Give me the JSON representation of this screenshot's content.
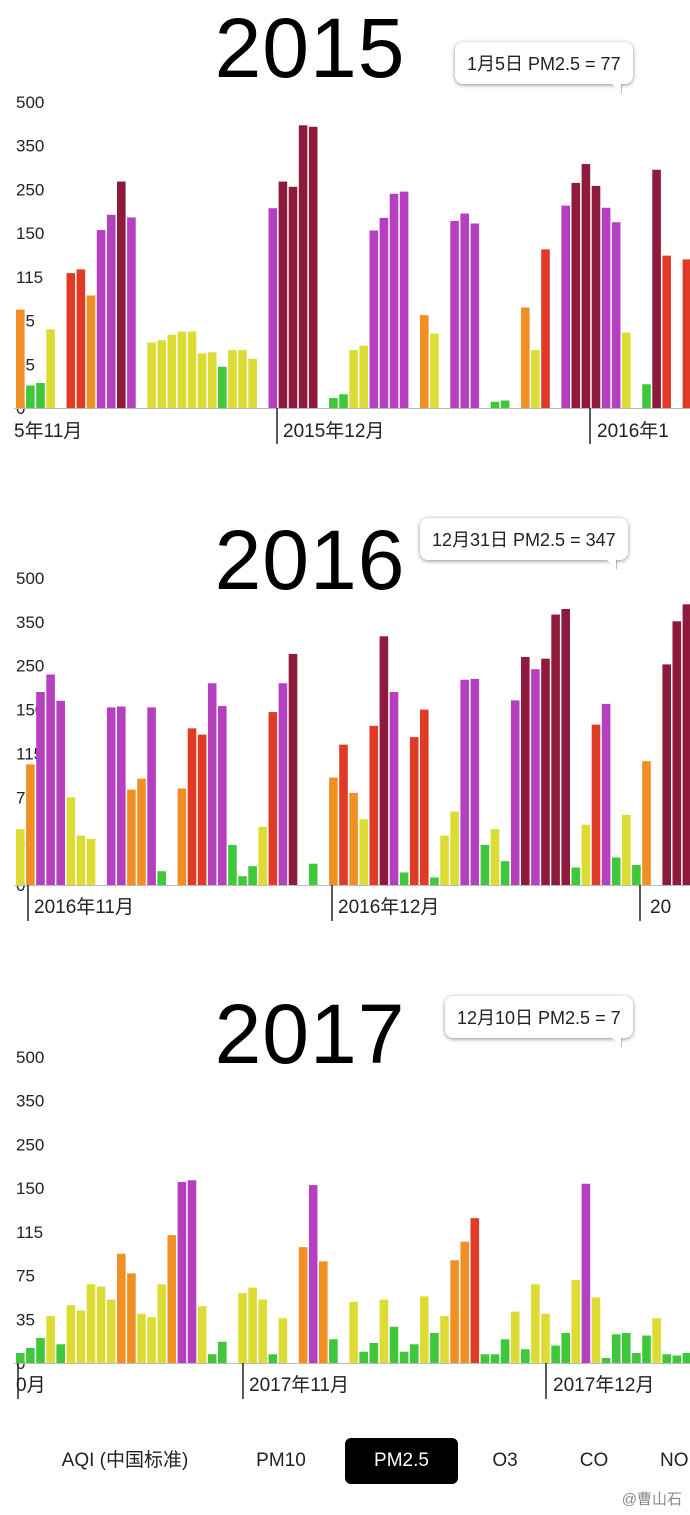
{
  "tabs": [
    {
      "label": "AQI (中国标准)"
    },
    {
      "label": "PM10"
    },
    {
      "label": "PM2.5",
      "active": true
    },
    {
      "label": "O3"
    },
    {
      "label": "CO"
    },
    {
      "label": "NO"
    }
  ],
  "watermark": "@曹山石",
  "colors": {
    "good": "#3ec83a",
    "moderate": "#dcdc35",
    "usg": "#ef8f24",
    "unhealthy": "#e03c25",
    "very_unhealthy": "#b440c0",
    "hazardous": "#8e1a3c"
  },
  "chart_data": [
    {
      "type": "bar",
      "title": "2015",
      "tooltip": "1月5日 PM2.5 = 77",
      "yticks": [
        "500",
        "350",
        "250",
        "150",
        "115",
        "75",
        "35",
        "0"
      ],
      "month_labels": [
        "5年11月",
        "2015年12月",
        "2016年1"
      ],
      "values": [
        85,
        18,
        20,
        67,
        0,
        118,
        121,
        98,
        157,
        192,
        268,
        186,
        0,
        55,
        57,
        62,
        65,
        65,
        45,
        46,
        33,
        48,
        48,
        40,
        0,
        207,
        268,
        256,
        420,
        415,
        0,
        8,
        11,
        48,
        52,
        156,
        185,
        240,
        245,
        0,
        80,
        63,
        0,
        178,
        195,
        172,
        0,
        5,
        6,
        0,
        87,
        48,
        137,
        0,
        213,
        265,
        308,
        258,
        208,
        175,
        64,
        0,
        19,
        295,
        132,
        0,
        129,
        248,
        302,
        203,
        0,
        26,
        78,
        15,
        31,
        93,
        0,
        183
      ]
    },
    {
      "type": "bar",
      "title": "2016",
      "tooltip": "12月31日 PM2.5 = 347",
      "yticks": [
        "500",
        "350",
        "250",
        "150",
        "115",
        "75",
        "35",
        "0"
      ],
      "month_labels": [
        "2016年11月",
        "2016年12月",
        "20"
      ],
      "values": [
        46,
        105,
        190,
        230,
        170,
        75,
        40,
        37,
        0,
        155,
        157,
        82,
        92,
        155,
        11,
        0,
        83,
        135,
        130,
        210,
        158,
        32,
        7,
        15,
        48,
        148,
        210,
        277,
        0,
        17,
        0,
        93,
        122,
        79,
        55,
        137,
        317,
        190,
        10,
        128,
        150,
        6,
        40,
        62,
        218,
        220,
        32,
        46,
        19,
        171,
        270,
        242,
        266,
        375,
        394,
        14,
        50,
        138,
        163,
        22,
        59,
        16,
        108,
        0,
        253,
        352,
        410,
        232,
        369
      ]
    },
    {
      "type": "bar",
      "title": "2017",
      "tooltip": "12月10日 PM2.5 = 7",
      "yticks": [
        "500",
        "350",
        "250",
        "150",
        "115",
        "75",
        "35",
        "0"
      ],
      "month_labels": [
        "0月",
        "2017年11月",
        "2017年12月"
      ],
      "values": [
        8,
        12,
        20,
        38,
        15,
        48,
        43,
        67,
        65,
        53,
        95,
        77,
        40,
        37,
        67,
        112,
        164,
        168,
        47,
        7,
        17,
        0,
        59,
        64,
        53,
        7,
        36,
        0,
        101,
        157,
        88,
        19,
        0,
        51,
        9,
        16,
        53,
        29,
        9,
        15,
        56,
        24,
        38,
        89,
        106,
        126,
        7,
        7,
        19,
        42,
        11,
        67,
        40,
        14,
        24,
        71,
        160,
        55,
        4,
        23,
        24,
        8,
        22,
        36,
        7,
        6,
        8,
        33
      ]
    }
  ]
}
